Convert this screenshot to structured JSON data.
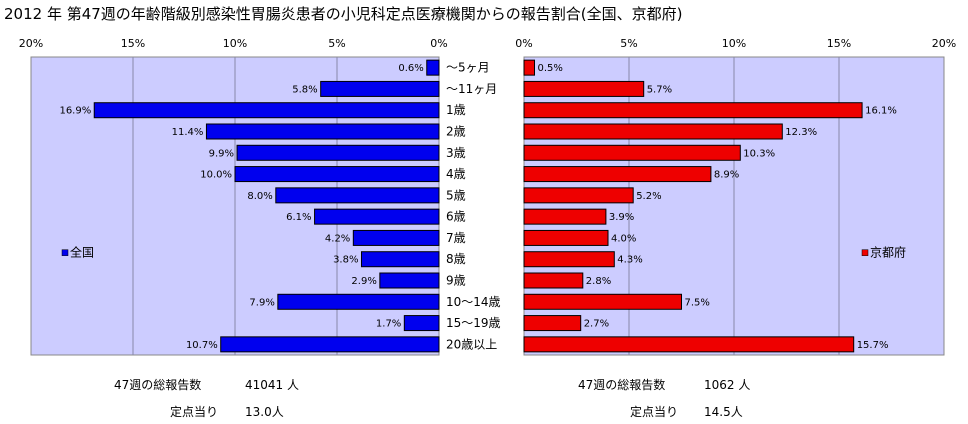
{
  "title": "2012 年 第47週の年齢階級別感染性胃腸炎患者の小児科定点医療機関からの報告割合(全国、京都府)",
  "colors": {
    "national": "#0000ee",
    "kyoto": "#ee0000",
    "plot_bg": "#ccccff",
    "grid": "#8888aa"
  },
  "chart_data": {
    "type": "bar",
    "orientation": "horizontal",
    "categories": [
      "～5ヶ月",
      "～11ヶ月",
      "1歳",
      "2歳",
      "3歳",
      "4歳",
      "5歳",
      "6歳",
      "7歳",
      "8歳",
      "9歳",
      "10～14歳",
      "15～19歳",
      "20歳以上"
    ],
    "xlim": [
      0,
      20
    ],
    "tick_labels": [
      "0%",
      "5%",
      "10%",
      "15%",
      "20%"
    ],
    "series": [
      {
        "name": "全国",
        "side": "left",
        "values": [
          0.6,
          5.8,
          16.9,
          11.4,
          9.9,
          10.0,
          8.0,
          6.1,
          4.2,
          3.8,
          2.9,
          7.9,
          1.7,
          10.7
        ],
        "labels": [
          "0.6%",
          "5.8%",
          "16.9%",
          "11.4%",
          "9.9%",
          "10.0%",
          "8.0%",
          "6.1%",
          "4.2%",
          "3.8%",
          "2.9%",
          "7.9%",
          "1.7%",
          "10.7%"
        ]
      },
      {
        "name": "京都府",
        "side": "right",
        "values": [
          0.5,
          5.7,
          16.1,
          12.3,
          10.3,
          8.9,
          5.2,
          3.9,
          4.0,
          4.3,
          2.8,
          7.5,
          2.7,
          15.7
        ],
        "labels": [
          "0.5%",
          "5.7%",
          "16.1%",
          "12.3%",
          "10.3%",
          "8.9%",
          "5.2%",
          "3.9%",
          "4.0%",
          "4.3%",
          "2.8%",
          "7.5%",
          "2.7%",
          "15.7%"
        ]
      }
    ]
  },
  "footer": {
    "national_total_label": "47週の総報告数",
    "national_total_value": "41041 人",
    "national_per_label": "定点当り",
    "national_per_value": "13.0人",
    "kyoto_total_label": "47週の総報告数",
    "kyoto_total_value": "1062 人",
    "kyoto_per_label": "定点当り",
    "kyoto_per_value": "14.5人"
  }
}
